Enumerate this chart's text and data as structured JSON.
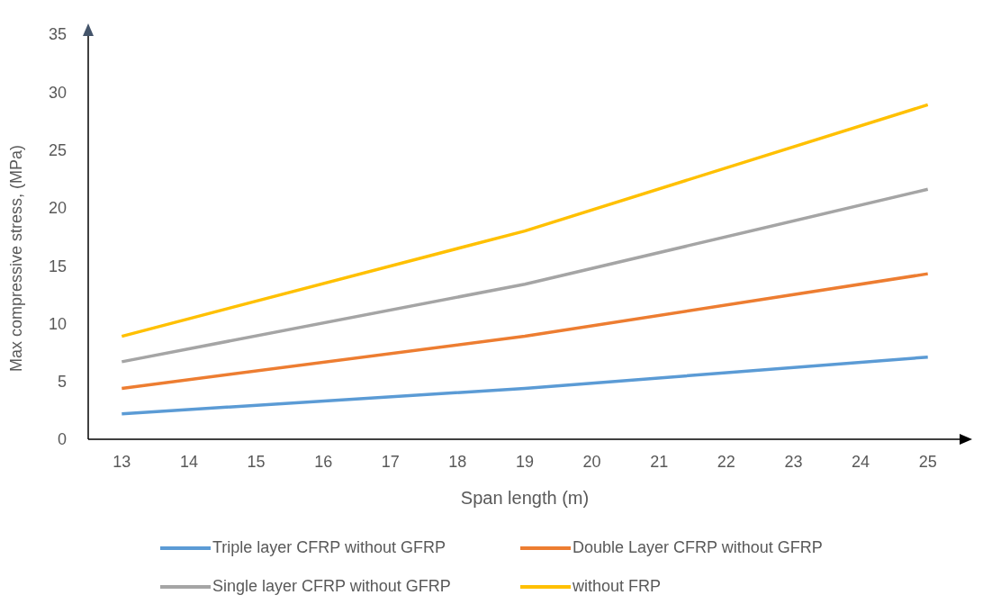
{
  "chart_data": {
    "type": "line",
    "xlabel": "Span length (m)",
    "ylabel": "Max compressive stress, (MPa)",
    "x": [
      13,
      19,
      25
    ],
    "series": [
      {
        "name": "Triple layer CFRP without GFRP",
        "color": "#5b9bd5",
        "values": [
          2.2,
          4.4,
          7.1
        ]
      },
      {
        "name": "Double Layer CFRP without GFRP",
        "color": "#ed7d31",
        "values": [
          4.4,
          8.9,
          14.3
        ]
      },
      {
        "name": "Single layer CFRP without GFRP",
        "color": "#a5a5a5",
        "values": [
          6.7,
          13.4,
          21.6
        ]
      },
      {
        "name": "without FRP",
        "color": "#ffc000",
        "values": [
          8.9,
          18,
          28.9
        ]
      }
    ],
    "xlim": [
      12.5,
      25.5
    ],
    "xticks": [
      13,
      14,
      15,
      16,
      17,
      18,
      19,
      20,
      21,
      22,
      23,
      24,
      25
    ],
    "ylim": [
      0,
      35
    ],
    "yticks": [
      0,
      5,
      10,
      15,
      20,
      25,
      30,
      35
    ],
    "grid": false,
    "legend": "bottom",
    "marker": "none",
    "line_style": "solid"
  }
}
